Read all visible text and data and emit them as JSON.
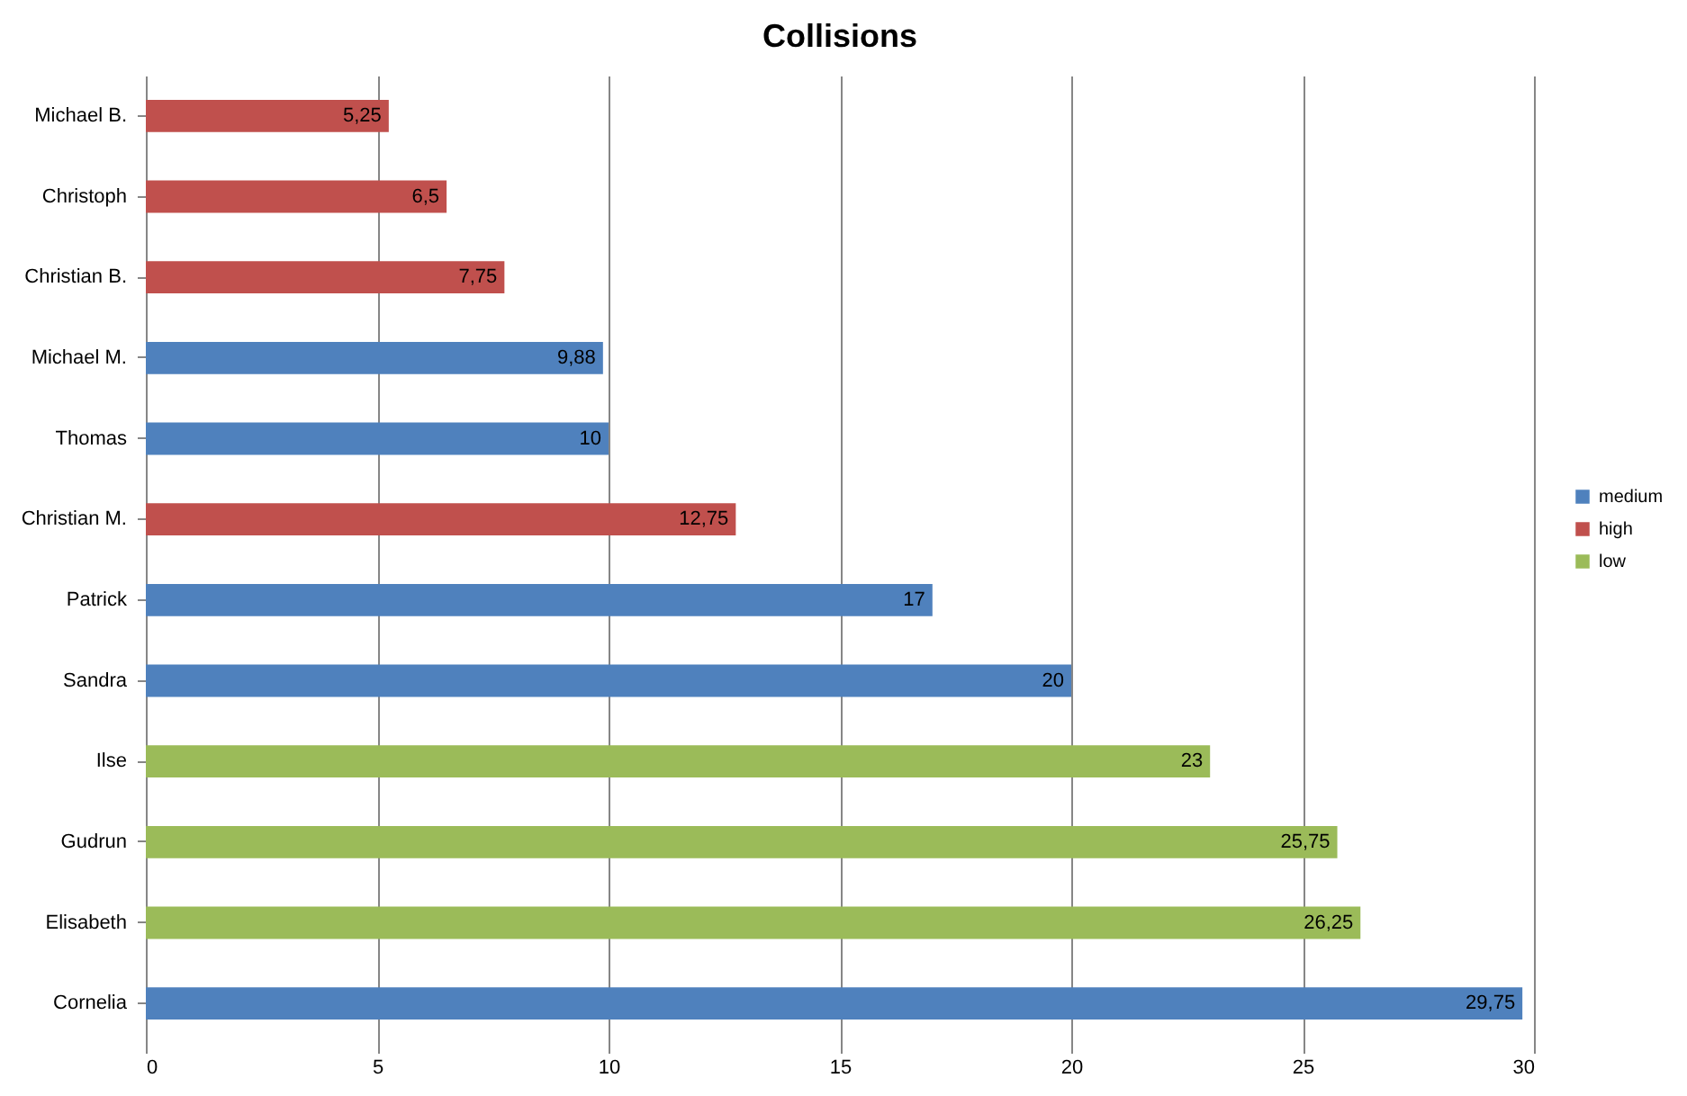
{
  "chart_data": {
    "type": "bar",
    "title": "Collisions",
    "orientation": "horizontal",
    "categories": [
      "Michael B.",
      "Christoph",
      "Christian B.",
      "Michael M.",
      "Thomas",
      "Christian M.",
      "Patrick",
      "Sandra",
      "Ilse",
      "Gudrun",
      "Elisabeth",
      "Cornelia"
    ],
    "series": [
      {
        "name": "medium",
        "color": "#4f81bd",
        "values": [
          null,
          null,
          null,
          9.88,
          10,
          null,
          17,
          20,
          null,
          null,
          null,
          29.75
        ],
        "value_labels": [
          null,
          null,
          null,
          "9,88",
          "10",
          null,
          "17",
          "20",
          null,
          null,
          null,
          "29,75"
        ]
      },
      {
        "name": "high",
        "color": "#c0504d",
        "values": [
          5.25,
          6.5,
          7.75,
          null,
          null,
          12.75,
          null,
          null,
          null,
          null,
          null,
          null
        ],
        "value_labels": [
          "5,25",
          "6,5",
          "7,75",
          null,
          null,
          "12,75",
          null,
          null,
          null,
          null,
          null,
          null
        ]
      },
      {
        "name": "low",
        "color": "#9bbb59",
        "values": [
          null,
          null,
          null,
          null,
          null,
          null,
          null,
          null,
          23,
          25.75,
          26.25,
          null
        ],
        "value_labels": [
          null,
          null,
          null,
          null,
          null,
          null,
          null,
          null,
          "23",
          "25,75",
          "26,25",
          null
        ]
      }
    ],
    "xlim": [
      0,
      30
    ],
    "xticks": [
      0,
      5,
      10,
      15,
      20,
      25,
      30
    ],
    "grid": "x",
    "legend": "right"
  }
}
